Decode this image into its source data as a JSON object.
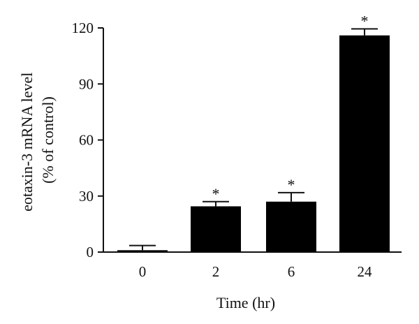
{
  "chart_data": {
    "type": "bar",
    "xlabel": "Time (hr)",
    "ylabel_lines": [
      "eotaxin-3 mRNA level",
      "(% of control)"
    ],
    "categories": [
      "0",
      "2",
      "6",
      "24"
    ],
    "values": [
      1,
      24.5,
      27,
      116
    ],
    "errors": [
      2.5,
      2.5,
      4.8,
      3.5
    ],
    "significance": [
      "",
      "*",
      "*",
      "*"
    ],
    "ylim": [
      0,
      120
    ],
    "yticks": [
      0,
      30,
      60,
      90,
      120
    ],
    "ytick_labels": [
      "0",
      "30",
      "60",
      "90",
      "120"
    ],
    "grid": false,
    "legend": "none",
    "colors": {
      "bar": "#000000",
      "axis": "#111111"
    }
  }
}
